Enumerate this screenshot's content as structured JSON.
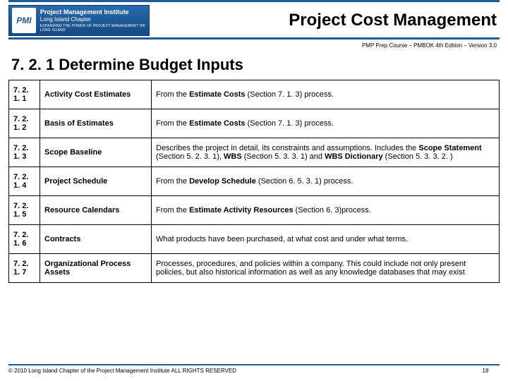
{
  "colors": {
    "accent": "#1f5a99",
    "text": "#000000",
    "bg": "#ffffff"
  },
  "header": {
    "logo_abbrev": "PMI",
    "logo_line1": "Project Management Institute",
    "logo_line2": "Long Island Chapter",
    "logo_tagline": "EXPANDING THE POWER OF PROJECT MANAGEMENT ON LONG ISLAND",
    "title": "Project Cost Management",
    "subtitle": "PMP Prep Course – PMBOK 4th Edition – Version 3.0"
  },
  "section": {
    "heading": "7. 2. 1 Determine Budget Inputs"
  },
  "rows": [
    {
      "num": "7. 2. 1. 1",
      "name": "Activity Cost Estimates",
      "desc_pre": "From the ",
      "desc_bold": "Estimate Costs",
      "desc_post": " (Section 7. 1. 3) process."
    },
    {
      "num": "7. 2. 1. 2",
      "name": "Basis of Estimates",
      "desc_pre": "From the ",
      "desc_bold": "Estimate Costs",
      "desc_post": " (Section 7. 1. 3) process."
    },
    {
      "num": "7. 2. 1. 3",
      "name": "Scope Baseline",
      "desc_pre": "Describes the project in detail, its constraints and assumptions. Includes the ",
      "desc_bold": "Scope Statement",
      "desc_post": " (Section 5. 2. 3. 1), ",
      "desc_bold2": "WBS",
      "desc_post2": " (Section 5. 3. 3. 1)  and ",
      "desc_bold3": "WBS Dictionary",
      "desc_post3": " (Section 5. 3. 3. 2. )"
    },
    {
      "num": "7. 2. 1. 4",
      "name": "Project Schedule",
      "desc_pre": "From the ",
      "desc_bold": "Develop Schedule",
      "desc_post": " (Section 6. 5. 3. 1) process."
    },
    {
      "num": "7. 2. 1. 5",
      "name": "Resource Calendars",
      "desc_pre": "From the ",
      "desc_bold": "Estimate Activity Resources",
      "desc_post": " (Section 6. 3)process."
    },
    {
      "num": "7. 2. 1. 6",
      "name": "Contracts",
      "desc_plain": "What products have been purchased, at what cost and under what terms."
    },
    {
      "num": "7. 2. 1. 7",
      "name": "Organizational Process Assets",
      "desc_plain": "Processes, procedures, and policies within a company. This could include not only present policies, but also historical information as well as any knowledge databases that may exist"
    }
  ],
  "footer": {
    "copyright": "© 2010 Long Island Chapter of the Project Management Institute  ALL RIGHTS RESERVED",
    "page": "18"
  }
}
